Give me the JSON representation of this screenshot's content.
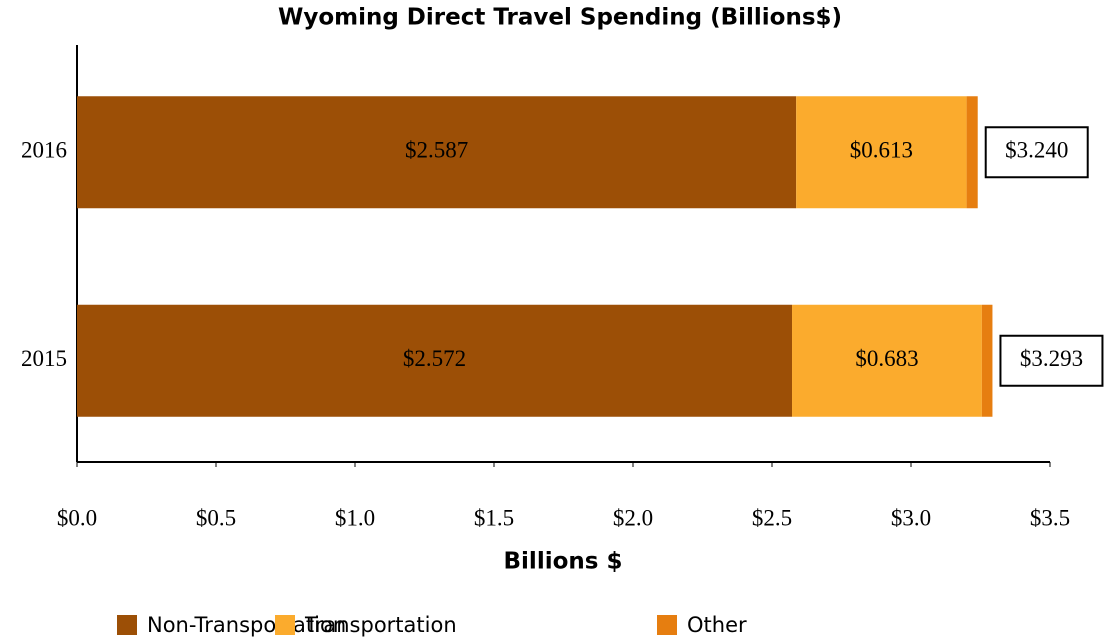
{
  "chart_data": {
    "type": "stacked_barh",
    "title": "Wyoming Direct Travel Spending (Billions$)",
    "xlabel": "Billions $",
    "categories": [
      "2015",
      "2016"
    ],
    "series": [
      {
        "name": "Non-Transportation",
        "color": "#9c4f06",
        "values": [
          2.572,
          2.587
        ],
        "value_labels": [
          "$2.572",
          "$2.587"
        ]
      },
      {
        "name": "Transportation",
        "color": "#fbab2d",
        "values": [
          0.683,
          0.613
        ],
        "value_labels": [
          "$0.683",
          "$0.613"
        ]
      },
      {
        "name": "Other",
        "color": "#e67e10",
        "values": [
          0.038,
          0.04
        ]
      }
    ],
    "totals": [
      3.293,
      3.24
    ],
    "total_labels": [
      "$3.293",
      "$3.240"
    ],
    "xlim": [
      0,
      3.5
    ],
    "xticks": [
      {
        "value": 0,
        "label": "$0.0"
      },
      {
        "value": 0.5,
        "label": "$0.5"
      },
      {
        "value": 1,
        "label": "$1.0"
      },
      {
        "value": 1.5,
        "label": "$1.5"
      },
      {
        "value": 2,
        "label": "$2.0"
      },
      {
        "value": 2.5,
        "label": "$2.5"
      },
      {
        "value": 3,
        "label": "$3.0"
      },
      {
        "value": 3.5,
        "label": "$3.5"
      }
    ],
    "legend": "bottom"
  }
}
